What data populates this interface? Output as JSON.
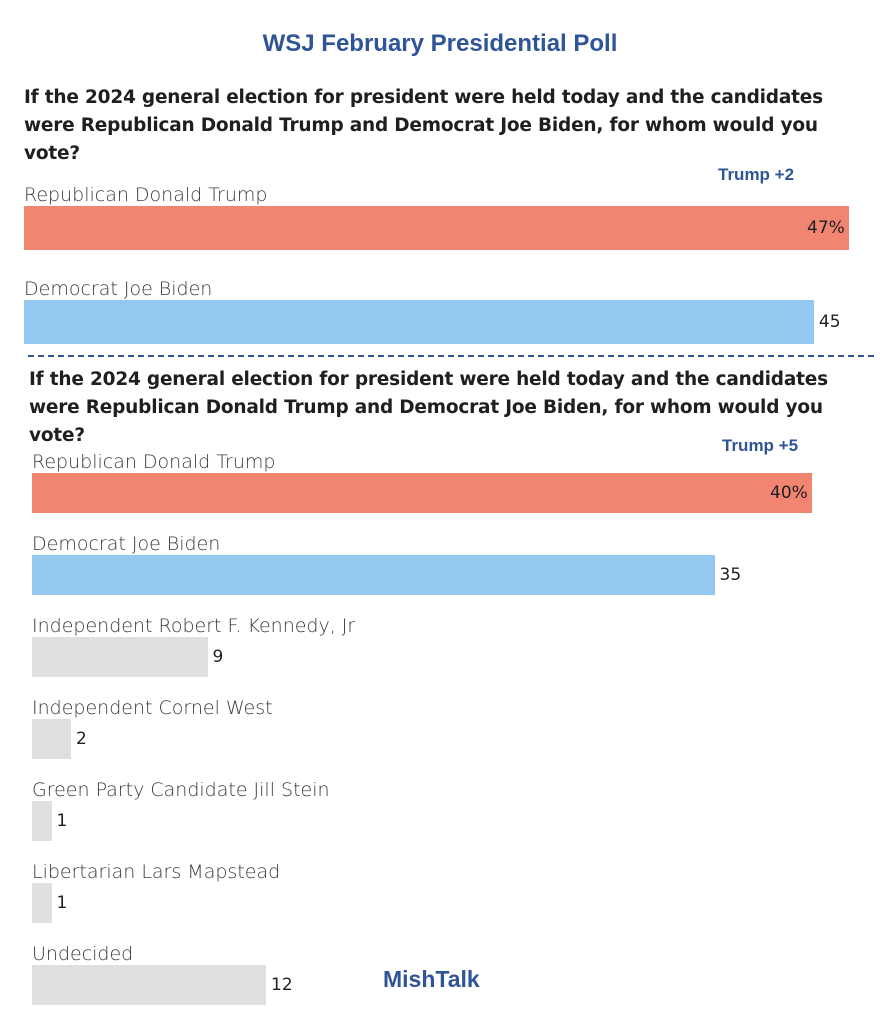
{
  "header": {
    "title": "WSJ February Presidential Poll"
  },
  "watermark": "MishTalk",
  "chart_data": [
    {
      "type": "bar",
      "orientation": "horizontal",
      "question": "If the 2024 general election for president were held today and the candidates were Republican Donald Trump and Democrat Joe Biden, for whom would you vote?",
      "margin_label": "Trump +2",
      "categories": [
        "Republican Donald Trump",
        "Democrat Joe Biden"
      ],
      "values": [
        47,
        45
      ],
      "value_labels": [
        "47%",
        "45"
      ],
      "colors": [
        "#f28472",
        "#94c8ee"
      ]
    },
    {
      "type": "bar",
      "orientation": "horizontal",
      "question": "If the 2024 general election for president were held today and the candidates were Republican Donald Trump and Democrat Joe Biden, for whom would you vote?",
      "margin_label": "Trump +5",
      "categories": [
        "Republican Donald Trump",
        "Democrat Joe Biden",
        "Independent Robert F. Kennedy, Jr",
        "Independent Cornel West",
        "Green Party Candidate Jill Stein",
        "Libertarian Lars Mapstead",
        "Undecided"
      ],
      "values": [
        40,
        35,
        9,
        2,
        1,
        1,
        12
      ],
      "value_labels": [
        "40%",
        "35",
        "9",
        "2",
        "1",
        "1",
        "12"
      ],
      "colors": [
        "#f28472",
        "#94c8ee",
        "#dedfe1",
        "#dedfe1",
        "#dedfe1",
        "#dedfe1",
        "#dedfe1"
      ]
    }
  ]
}
